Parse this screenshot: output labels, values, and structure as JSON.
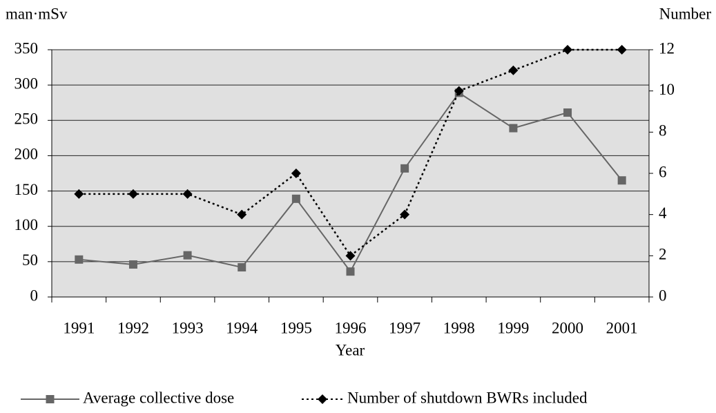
{
  "chart_data": {
    "type": "line",
    "y_label": "man·mSv",
    "y2_label": "Number",
    "x_label": "Year",
    "categories": [
      "1991",
      "1992",
      "1993",
      "1994",
      "1995",
      "1996",
      "1997",
      "1998",
      "1999",
      "2000",
      "2001"
    ],
    "series": [
      {
        "name": "Average collective dose",
        "color": "#666666",
        "values": [
          53,
          46,
          59,
          42,
          139,
          36,
          182,
          289,
          239,
          261,
          165
        ]
      },
      {
        "name": "Number of shutdown BWRs included",
        "color": "#000000",
        "axis": "y2",
        "values": [
          5,
          5,
          5,
          4,
          6,
          2,
          4,
          10,
          11,
          12,
          12
        ]
      }
    ],
    "ylim": [
      0,
      350
    ],
    "yticks": [
      0,
      50,
      100,
      150,
      200,
      250,
      300,
      350
    ],
    "y2lim": [
      0,
      12
    ],
    "y2ticks": [
      0,
      2,
      4,
      6,
      8,
      10,
      12
    ],
    "grid": true
  }
}
